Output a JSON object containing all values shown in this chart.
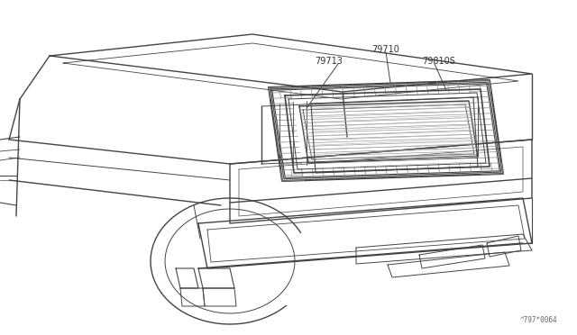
{
  "background_color": "#ffffff",
  "line_color": "#444444",
  "label_color": "#333333",
  "fig_width": 6.4,
  "fig_height": 3.72,
  "dpi": 100,
  "footer_text": "^797*0064",
  "label_79710": "79710",
  "label_79713": "79713",
  "label_79810S": "79810S"
}
